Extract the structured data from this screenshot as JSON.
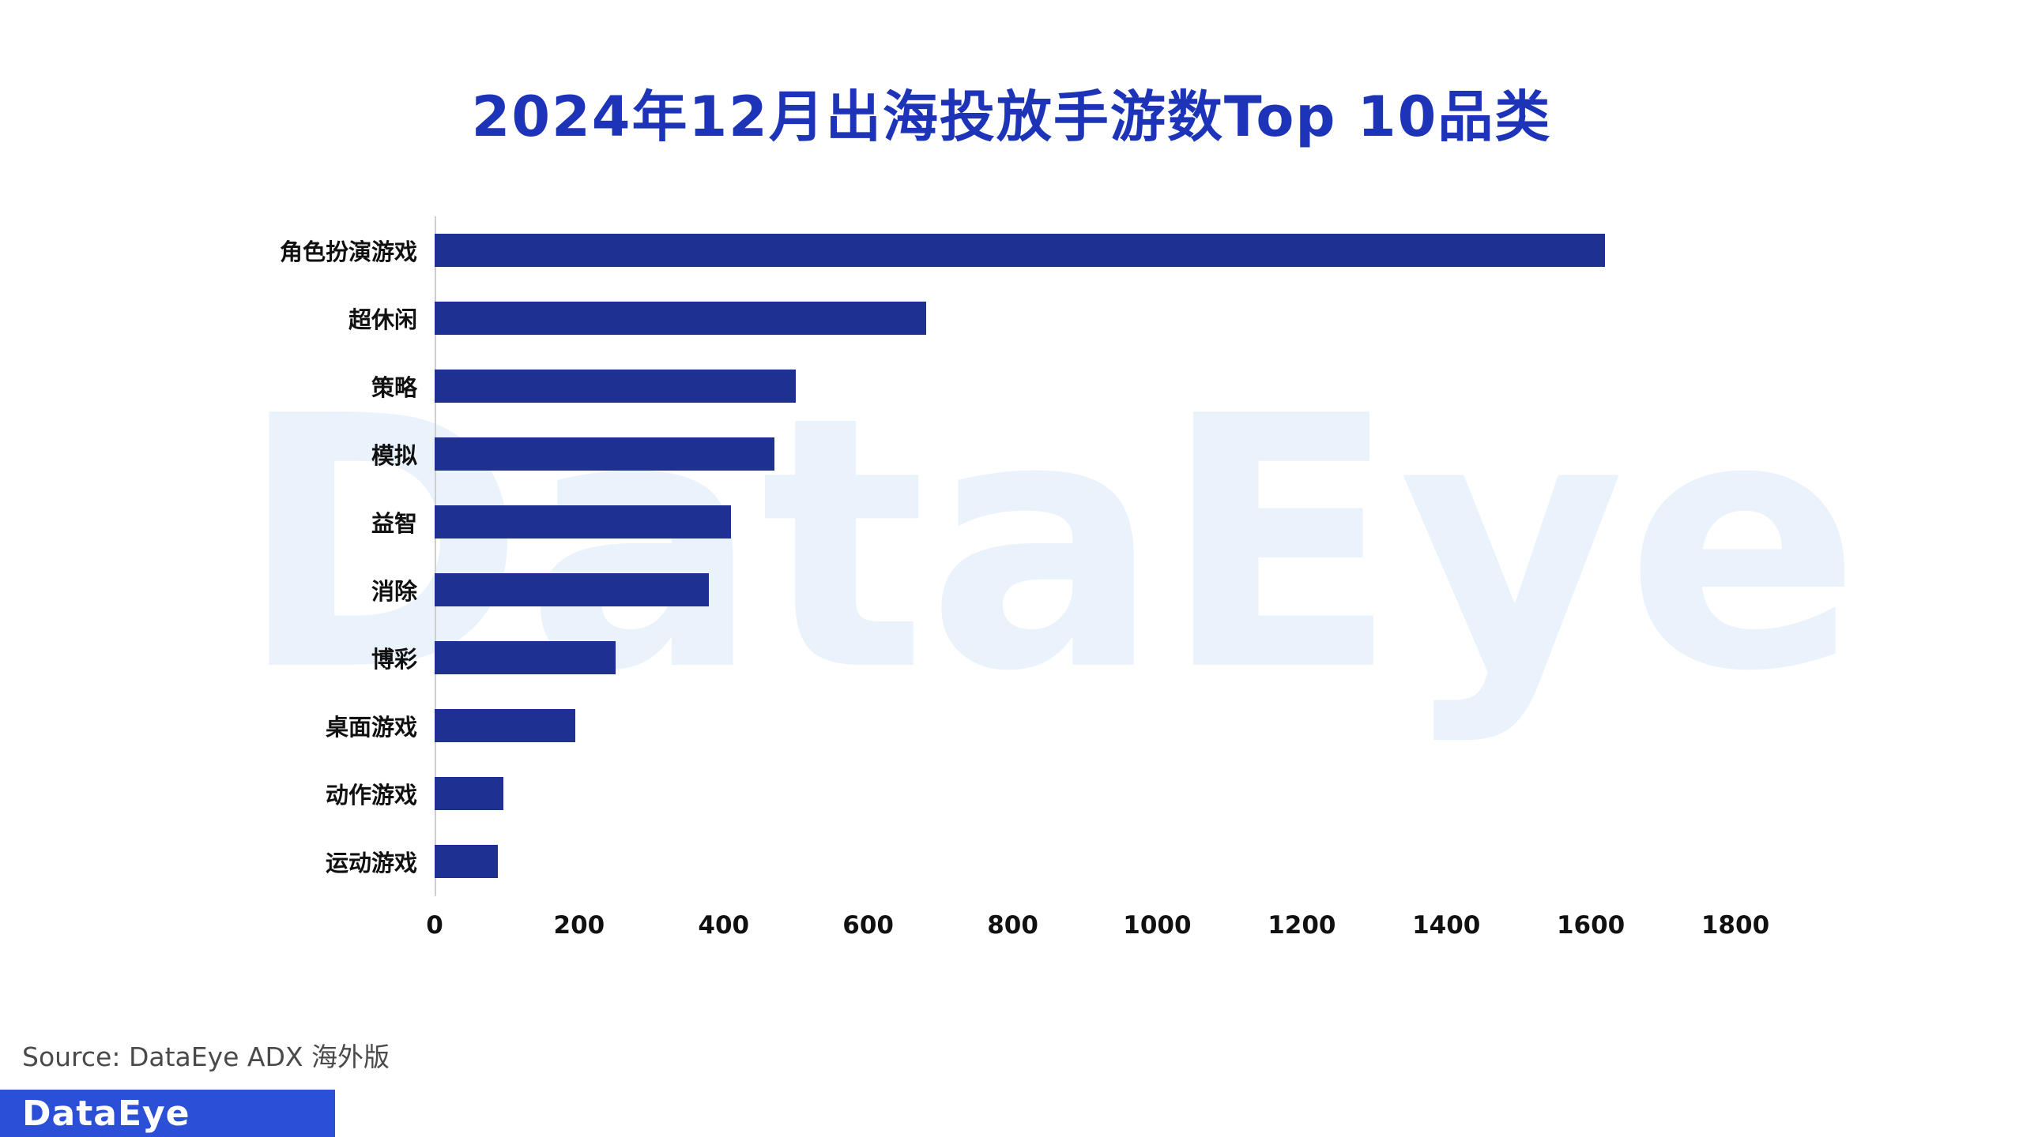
{
  "title": "2024年12月出海投放手游数Top 10品类",
  "source": "Source: DataEye ADX 海外版",
  "watermark": "DataEye",
  "logo": "DataEye",
  "colors": {
    "title": "#1d34b8",
    "bar": "#1e3192",
    "watermark": "#eaf3fc",
    "logo_bg": "#2b4fd7",
    "axis_line": "#cfcfcf",
    "label_text": "#111111",
    "source_text": "#4a4a4a"
  },
  "chart_data": {
    "type": "bar",
    "orientation": "horizontal",
    "title": "2024年12月出海投放手游数Top 10品类",
    "categories": [
      "角色扮演游戏",
      "超休闲",
      "策略",
      "模拟",
      "益智",
      "消除",
      "博彩",
      "桌面游戏",
      "动作游戏",
      "运动游戏"
    ],
    "values": [
      1620,
      680,
      500,
      470,
      410,
      380,
      250,
      195,
      95,
      88
    ],
    "xticks": [
      0,
      200,
      400,
      600,
      800,
      1000,
      1200,
      1400,
      1600,
      1800
    ],
    "xlim": [
      0,
      1800
    ],
    "xlabel": "",
    "ylabel": "",
    "grid": false,
    "legend": "none"
  }
}
